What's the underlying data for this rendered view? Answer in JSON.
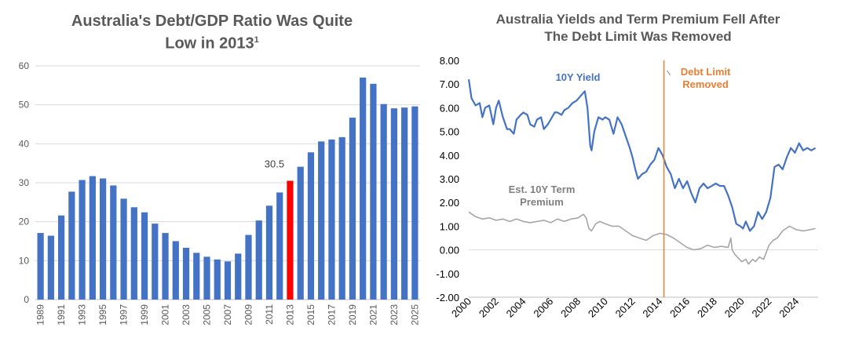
{
  "chart_data": [
    {
      "type": "bar",
      "title_lines": [
        "Australia's Debt/GDP Ratio Was Quite",
        "Low in 2013"
      ],
      "title_superscript": "1",
      "categories": [
        "1989",
        "1990",
        "1991",
        "1992",
        "1993",
        "1994",
        "1995",
        "1996",
        "1997",
        "1998",
        "1999",
        "2000",
        "2001",
        "2002",
        "2003",
        "2004",
        "2005",
        "2006",
        "2007",
        "2008",
        "2009",
        "2010",
        "2011",
        "2012",
        "2013",
        "2014",
        "2015",
        "2016",
        "2017",
        "2018",
        "2019",
        "2020",
        "2021",
        "2022",
        "2023",
        "2024",
        "2025"
      ],
      "values": [
        17.1,
        16.4,
        21.6,
        27.7,
        30.7,
        31.7,
        31.1,
        29.3,
        25.9,
        23.7,
        22.4,
        19.5,
        17.1,
        15.0,
        13.3,
        12.0,
        11.0,
        10.3,
        9.8,
        11.8,
        16.6,
        20.3,
        24.1,
        27.5,
        30.5,
        34.1,
        37.8,
        40.6,
        41.1,
        41.7,
        46.7,
        57.0,
        55.4,
        50.2,
        49.1,
        49.3,
        49.6
      ],
      "tick_labels_x": [
        "1989",
        "1991",
        "1993",
        "1995",
        "1997",
        "1999",
        "2001",
        "2003",
        "2005",
        "2007",
        "2009",
        "2011",
        "2013",
        "2015",
        "2017",
        "2019",
        "2021",
        "2023",
        "2025"
      ],
      "tick_labels_y": [
        "0",
        "10",
        "20",
        "30",
        "40",
        "50",
        "60"
      ],
      "ylim": [
        0,
        60
      ],
      "highlight_index": 24,
      "highlight_label": "30.5",
      "colors": {
        "bar": "#4472C4",
        "highlight": "#FF0000",
        "axis_text": "#595959"
      }
    },
    {
      "type": "line",
      "title_lines": [
        "Australia Yields and Term Premium Fell After",
        "The Debt Limit Was Removed"
      ],
      "ylim": [
        -2,
        8
      ],
      "xlim": [
        2000,
        2025.6
      ],
      "tick_labels_y": [
        "-2.00",
        "-1.00",
        "0.00",
        "1.00",
        "2.00",
        "3.00",
        "4.00",
        "5.00",
        "6.00",
        "7.00",
        "8.00"
      ],
      "tick_labels_x": [
        "2000",
        "2002",
        "2004",
        "2006",
        "2008",
        "2010",
        "2012",
        "2014",
        "2016",
        "2018",
        "2020",
        "2022",
        "2024"
      ],
      "series": [
        {
          "name": "10Y Yield",
          "color": "#4472C4",
          "x": [
            2000.0,
            2000.2,
            2000.5,
            2000.8,
            2001.0,
            2001.2,
            2001.5,
            2001.8,
            2002.0,
            2002.2,
            2002.5,
            2002.8,
            2003.0,
            2003.3,
            2003.5,
            2003.8,
            2004.0,
            2004.3,
            2004.5,
            2004.8,
            2005.0,
            2005.3,
            2005.5,
            2005.8,
            2006.0,
            2006.3,
            2006.5,
            2006.8,
            2007.0,
            2007.3,
            2007.6,
            2007.9,
            2008.2,
            2008.5,
            2008.7,
            2008.9,
            2009.0,
            2009.2,
            2009.5,
            2009.8,
            2010.0,
            2010.3,
            2010.6,
            2010.9,
            2011.2,
            2011.5,
            2011.8,
            2012.0,
            2012.2,
            2012.4,
            2012.7,
            2013.0,
            2013.3,
            2013.6,
            2013.9,
            2014.2,
            2014.5,
            2014.8,
            2015.1,
            2015.4,
            2015.7,
            2016.0,
            2016.3,
            2016.6,
            2016.9,
            2017.2,
            2017.5,
            2017.8,
            2018.1,
            2018.4,
            2018.7,
            2019.0,
            2019.3,
            2019.6,
            2019.9,
            2020.1,
            2020.3,
            2020.6,
            2020.9,
            2021.2,
            2021.5,
            2021.8,
            2022.1,
            2022.4,
            2022.7,
            2023.0,
            2023.3,
            2023.6,
            2023.9,
            2024.2,
            2024.5,
            2024.8,
            2025.1,
            2025.4
          ],
          "y": [
            7.2,
            6.4,
            6.1,
            6.2,
            5.6,
            6.0,
            6.1,
            5.3,
            6.0,
            6.3,
            5.6,
            5.1,
            5.1,
            4.9,
            5.5,
            5.7,
            5.8,
            5.7,
            5.3,
            5.2,
            5.5,
            5.6,
            5.1,
            5.3,
            5.5,
            5.8,
            5.8,
            5.7,
            5.9,
            6.0,
            6.2,
            6.3,
            6.5,
            6.7,
            6.0,
            4.4,
            4.2,
            5.0,
            5.6,
            5.5,
            5.6,
            5.5,
            4.9,
            5.6,
            5.3,
            4.8,
            4.3,
            3.9,
            3.4,
            3.0,
            3.2,
            3.3,
            3.6,
            3.8,
            4.3,
            4.0,
            3.5,
            3.2,
            2.6,
            3.0,
            2.6,
            2.9,
            2.4,
            2.0,
            2.6,
            2.8,
            2.6,
            2.7,
            2.8,
            2.7,
            2.7,
            2.3,
            1.8,
            1.1,
            1.0,
            0.9,
            1.2,
            0.8,
            1.0,
            1.6,
            1.3,
            1.6,
            2.2,
            3.5,
            3.6,
            3.4,
            3.9,
            4.3,
            4.1,
            4.5,
            4.2,
            4.3,
            4.2,
            4.3
          ]
        },
        {
          "name": "Est. 10Y Term Premium",
          "color": "#A6A6A6",
          "x": [
            2000.0,
            2000.5,
            2001.0,
            2001.5,
            2002.0,
            2002.5,
            2003.0,
            2003.5,
            2004.0,
            2004.5,
            2005.0,
            2005.5,
            2006.0,
            2006.5,
            2007.0,
            2007.5,
            2008.0,
            2008.4,
            2008.6,
            2008.8,
            2009.0,
            2009.3,
            2009.6,
            2010.0,
            2010.5,
            2011.0,
            2011.5,
            2012.0,
            2012.5,
            2013.0,
            2013.5,
            2014.0,
            2014.5,
            2015.0,
            2015.5,
            2016.0,
            2016.5,
            2017.0,
            2017.5,
            2018.0,
            2018.5,
            2019.0,
            2019.2,
            2019.3,
            2019.5,
            2020.0,
            2020.3,
            2020.5,
            2020.8,
            2021.0,
            2021.3,
            2021.6,
            2022.0,
            2022.3,
            2022.6,
            2023.0,
            2023.5,
            2024.0,
            2024.5,
            2025.0,
            2025.4
          ],
          "y": [
            1.6,
            1.4,
            1.3,
            1.35,
            1.25,
            1.3,
            1.2,
            1.3,
            1.2,
            1.15,
            1.2,
            1.25,
            1.15,
            1.3,
            1.2,
            1.3,
            1.35,
            1.5,
            1.35,
            0.9,
            0.8,
            1.1,
            1.2,
            1.1,
            1.0,
            1.0,
            0.8,
            0.6,
            0.5,
            0.4,
            0.6,
            0.7,
            0.65,
            0.5,
            0.3,
            0.1,
            0.0,
            0.05,
            0.2,
            0.1,
            0.15,
            0.1,
            0.5,
            0.0,
            -0.2,
            -0.5,
            -0.4,
            -0.6,
            -0.4,
            -0.5,
            -0.3,
            -0.4,
            0.2,
            0.4,
            0.5,
            0.8,
            1.0,
            0.85,
            0.8,
            0.85,
            0.9
          ]
        }
      ],
      "event": {
        "x": 2014.3,
        "label_lines": [
          "Debt Limit",
          "Removed"
        ],
        "color": "#ED7D31"
      },
      "labels": {
        "yield_label": "10Y Yield",
        "premium_label_lines": [
          "Est. 10Y Term",
          "Premium"
        ]
      }
    }
  ]
}
